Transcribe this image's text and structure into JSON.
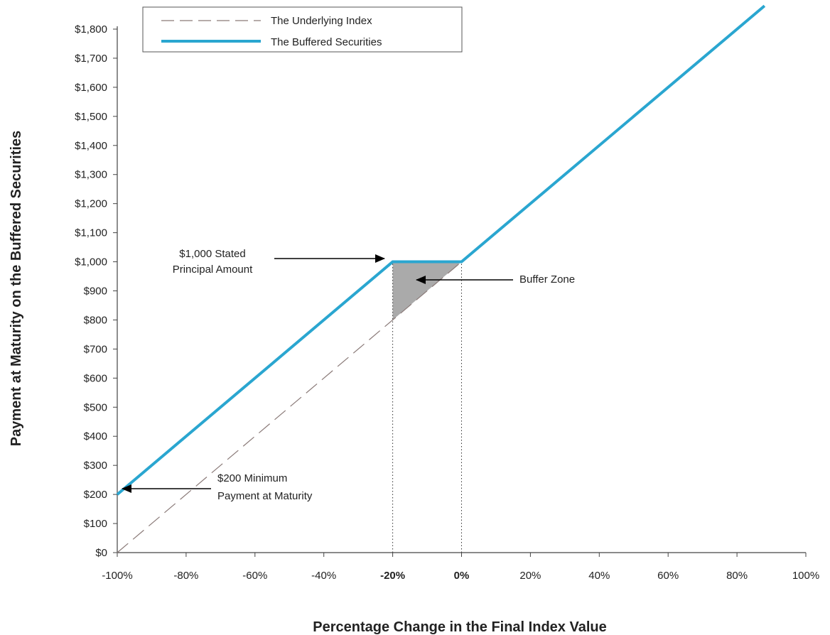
{
  "chart_data": {
    "type": "line",
    "xlabel": "Percentage Change in the Final Index Value",
    "ylabel": "Payment at Maturity on the Buffered Securities",
    "xlim": [
      -100,
      100
    ],
    "ylim": [
      0,
      1800
    ],
    "x_ticks": [
      {
        "value": -100,
        "label": "-100%",
        "bold": false
      },
      {
        "value": -80,
        "label": "-80%",
        "bold": false
      },
      {
        "value": -60,
        "label": "-60%",
        "bold": false
      },
      {
        "value": -40,
        "label": "-40%",
        "bold": false
      },
      {
        "value": -20,
        "label": "-20%",
        "bold": true
      },
      {
        "value": 0,
        "label": "0%",
        "bold": true
      },
      {
        "value": 20,
        "label": "20%",
        "bold": false
      },
      {
        "value": 40,
        "label": "40%",
        "bold": false
      },
      {
        "value": 60,
        "label": "60%",
        "bold": false
      },
      {
        "value": 80,
        "label": "80%",
        "bold": false
      },
      {
        "value": 100,
        "label": "100%",
        "bold": false
      }
    ],
    "y_ticks": [
      {
        "value": 0,
        "label": "$0"
      },
      {
        "value": 100,
        "label": "$100"
      },
      {
        "value": 200,
        "label": "$200"
      },
      {
        "value": 300,
        "label": "$300"
      },
      {
        "value": 400,
        "label": "$400"
      },
      {
        "value": 500,
        "label": "$500"
      },
      {
        "value": 600,
        "label": "$600"
      },
      {
        "value": 700,
        "label": "$700"
      },
      {
        "value": 800,
        "label": "$800"
      },
      {
        "value": 900,
        "label": "$900"
      },
      {
        "value": 1000,
        "label": "$1,000"
      },
      {
        "value": 1100,
        "label": "$1,100"
      },
      {
        "value": 1200,
        "label": "$1,200"
      },
      {
        "value": 1300,
        "label": "$1,300"
      },
      {
        "value": 1400,
        "label": "$1,400"
      },
      {
        "value": 1500,
        "label": "$1,500"
      },
      {
        "value": 1600,
        "label": "$1,600"
      },
      {
        "value": 1700,
        "label": "$1,700"
      },
      {
        "value": 1800,
        "label": "$1,800"
      }
    ],
    "series": [
      {
        "name": "The Underlying Index",
        "style": "dashed",
        "color": "#8a7a78",
        "x": [
          -100,
          20
        ],
        "y": [
          0,
          1200
        ]
      },
      {
        "name": "The Buffered Securities",
        "style": "solid",
        "color": "#2aa6d0",
        "x": [
          -100,
          -20,
          0,
          88
        ],
        "y": [
          200,
          1000,
          1000,
          1880
        ]
      }
    ],
    "buffer_zone": {
      "color": "#aaaaaa",
      "points": [
        [
          -20,
          1000
        ],
        [
          0,
          1000
        ],
        [
          -20,
          800
        ]
      ]
    },
    "guides": [
      {
        "x": -20,
        "y_from": 0,
        "y_to": 1000
      },
      {
        "x": 0,
        "y_from": 0,
        "y_to": 1000
      }
    ],
    "annotations": [
      {
        "id": "principal",
        "lines": [
          "$1,000 Stated",
          "Principal Amount"
        ],
        "target": [
          -20,
          1000
        ]
      },
      {
        "id": "buffer",
        "lines": [
          "Buffer Zone"
        ],
        "target": [
          -15,
          940
        ]
      },
      {
        "id": "minimum",
        "lines": [
          "$200 Minimum",
          "Payment at Maturity"
        ],
        "target": [
          -100,
          200
        ]
      }
    ],
    "legend": {
      "position": "top-left"
    },
    "grid": false
  }
}
